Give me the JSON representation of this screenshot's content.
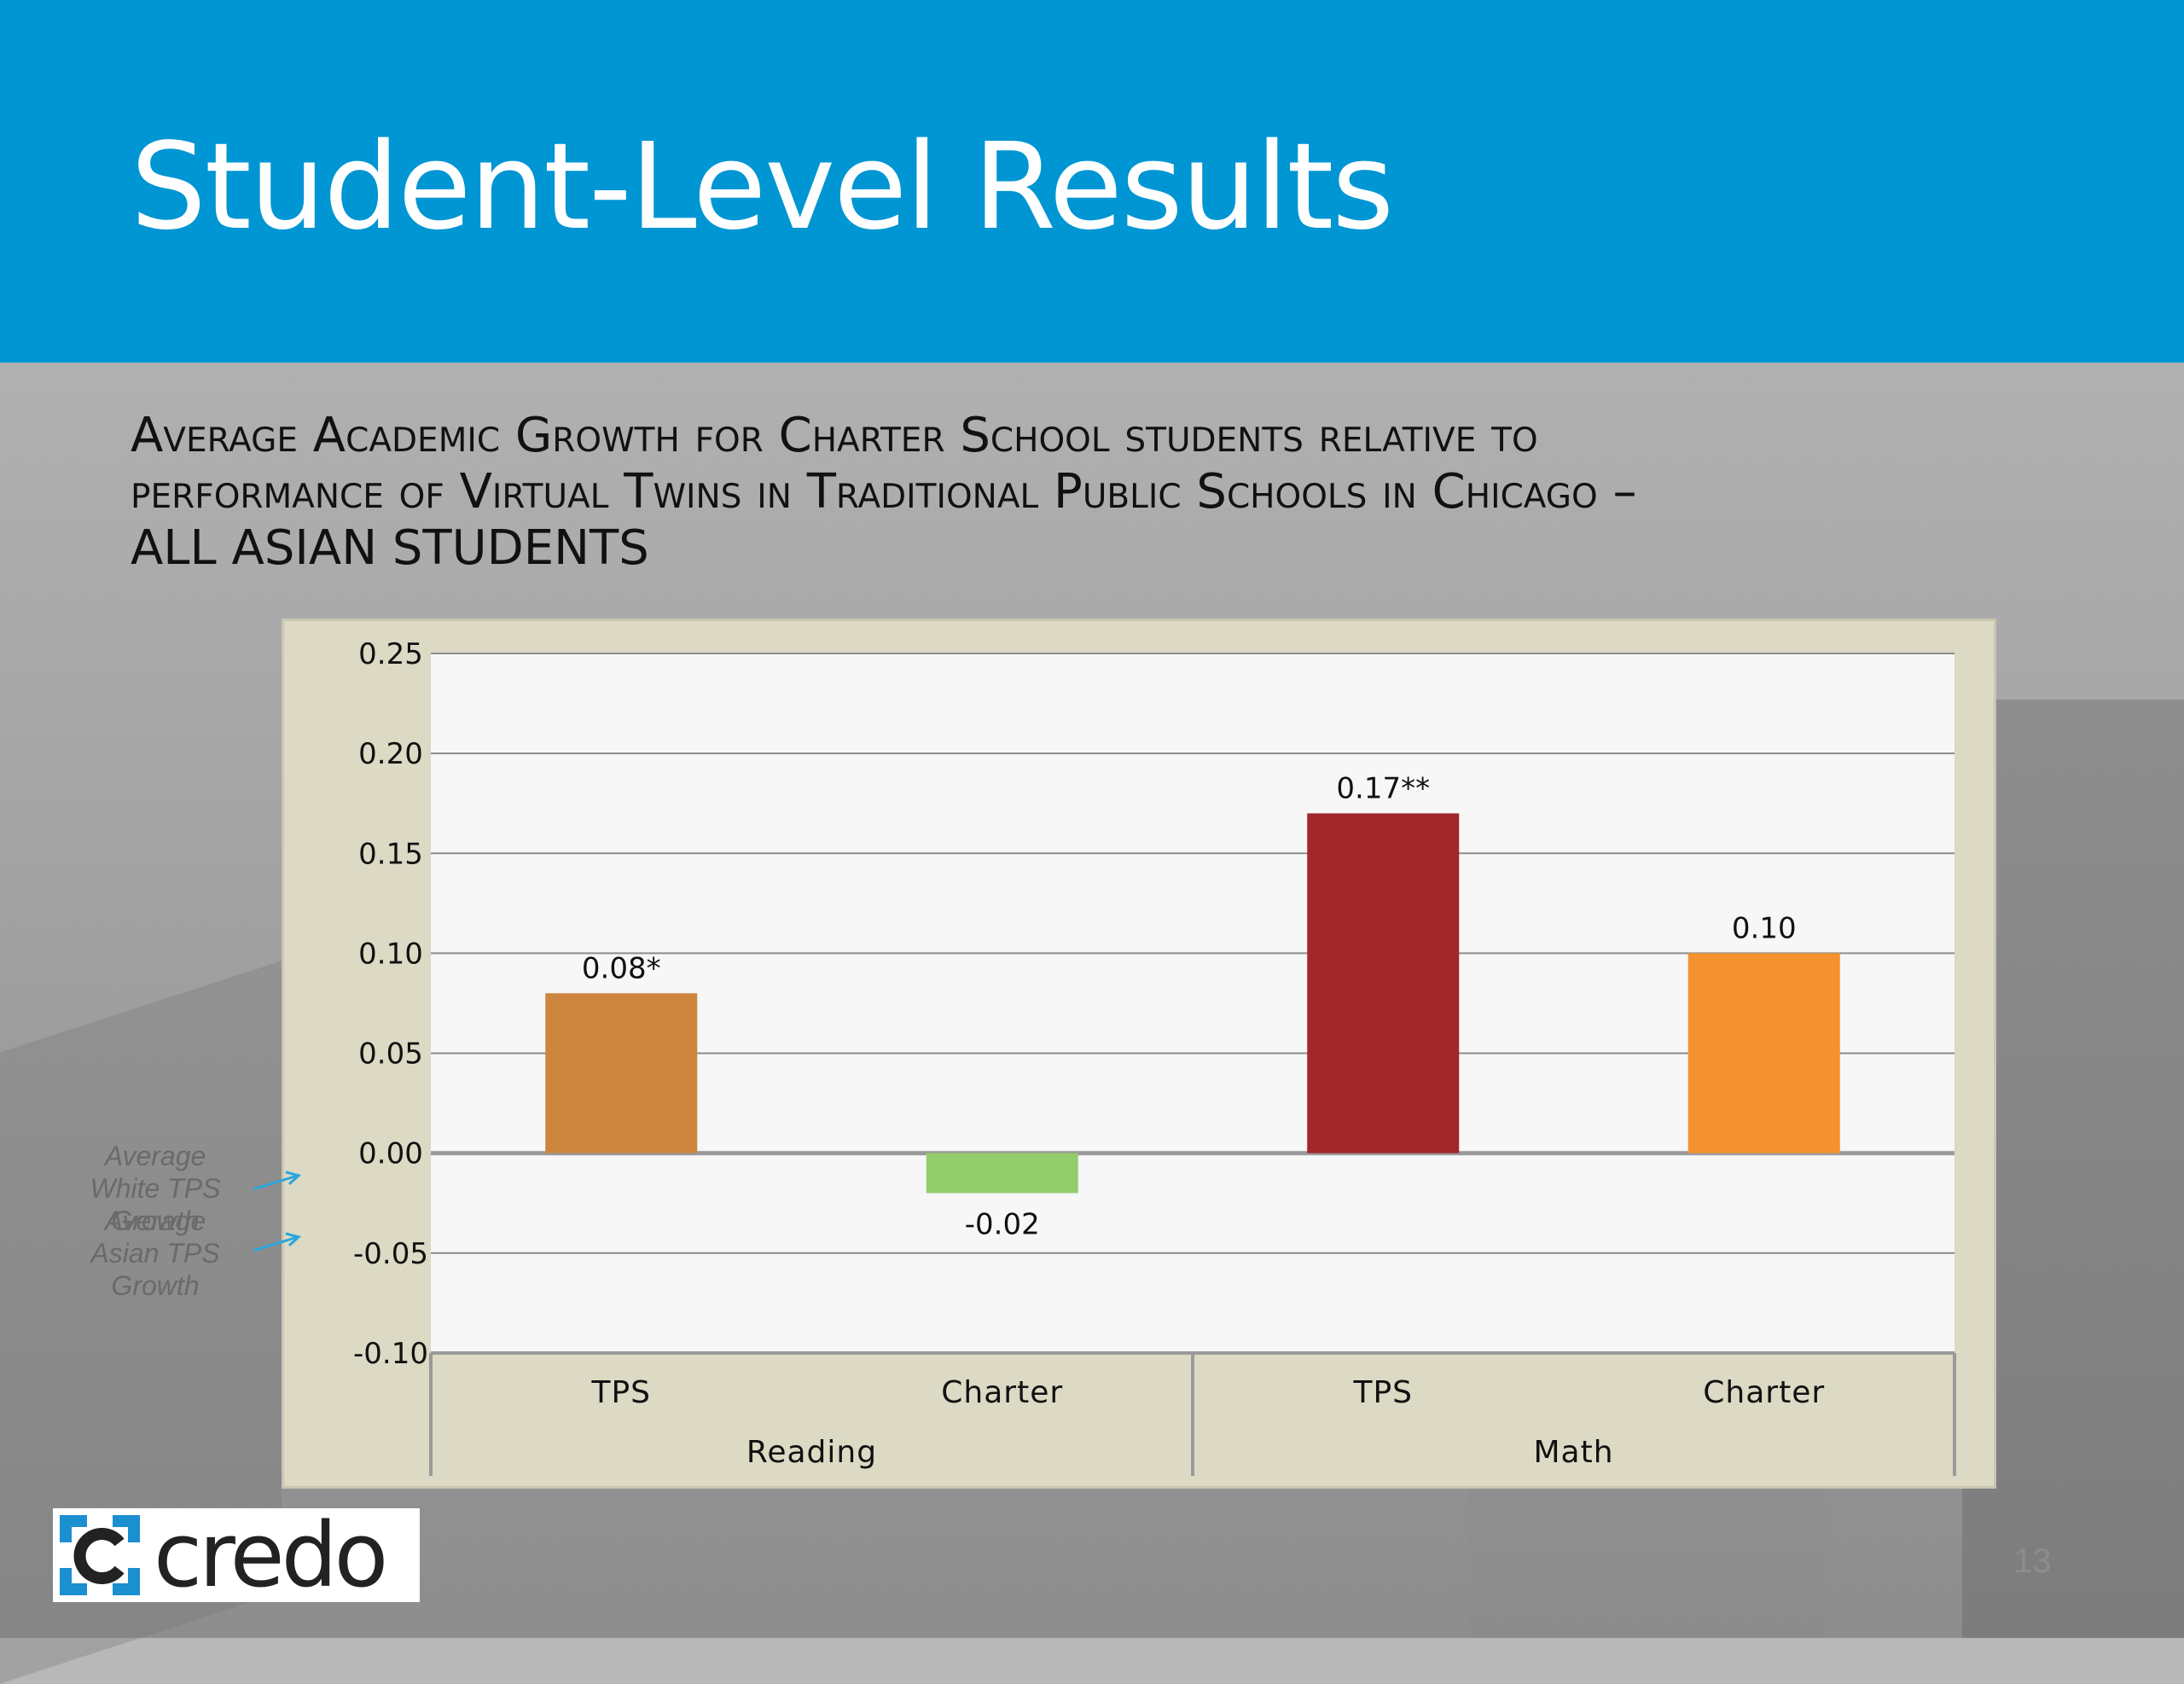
{
  "slide": {
    "title": "Student-Level Results",
    "subtitle_lines": [
      "Average Academic Growth for Charter School students relative to",
      "performance of Virtual Twins in Traditional Public Schools in Chicago –",
      "ALL ASIAN STUDENTS"
    ],
    "page_number": "13",
    "logo_text": "credo"
  },
  "annotations": {
    "white_tps": "Average White TPS Growth",
    "asian_tps": "Average Asian TPS Growth"
  },
  "chart_data": {
    "type": "bar",
    "ylim": [
      -0.1,
      0.25
    ],
    "yticks": [
      "0.25",
      "0.20",
      "0.15",
      "0.10",
      "0.05",
      "0.00",
      "-0.05",
      "-0.10"
    ],
    "ytick_values": [
      0.25,
      0.2,
      0.15,
      0.1,
      0.05,
      0.0,
      -0.05,
      -0.1
    ],
    "groups": [
      {
        "name": "Reading",
        "categories": [
          "TPS",
          "Charter"
        ]
      },
      {
        "name": "Math",
        "categories": [
          "TPS",
          "Charter"
        ]
      }
    ],
    "bars": [
      {
        "group": "Reading",
        "category": "TPS",
        "value": 0.08,
        "label": "0.08*",
        "color": "#cd853f"
      },
      {
        "group": "Reading",
        "category": "Charter",
        "value": -0.02,
        "label": "-0.02",
        "color": "#93cd6b"
      },
      {
        "group": "Math",
        "category": "TPS",
        "value": 0.17,
        "label": "0.17**",
        "color": "#a3262a"
      },
      {
        "group": "Math",
        "category": "Charter",
        "value": 0.1,
        "label": "0.10",
        "color": "#f5922f"
      }
    ],
    "grid": true
  },
  "colors": {
    "header": "#0095d3",
    "plot_background": "#f7f7f7",
    "frame_background": "#dcd9c4"
  }
}
